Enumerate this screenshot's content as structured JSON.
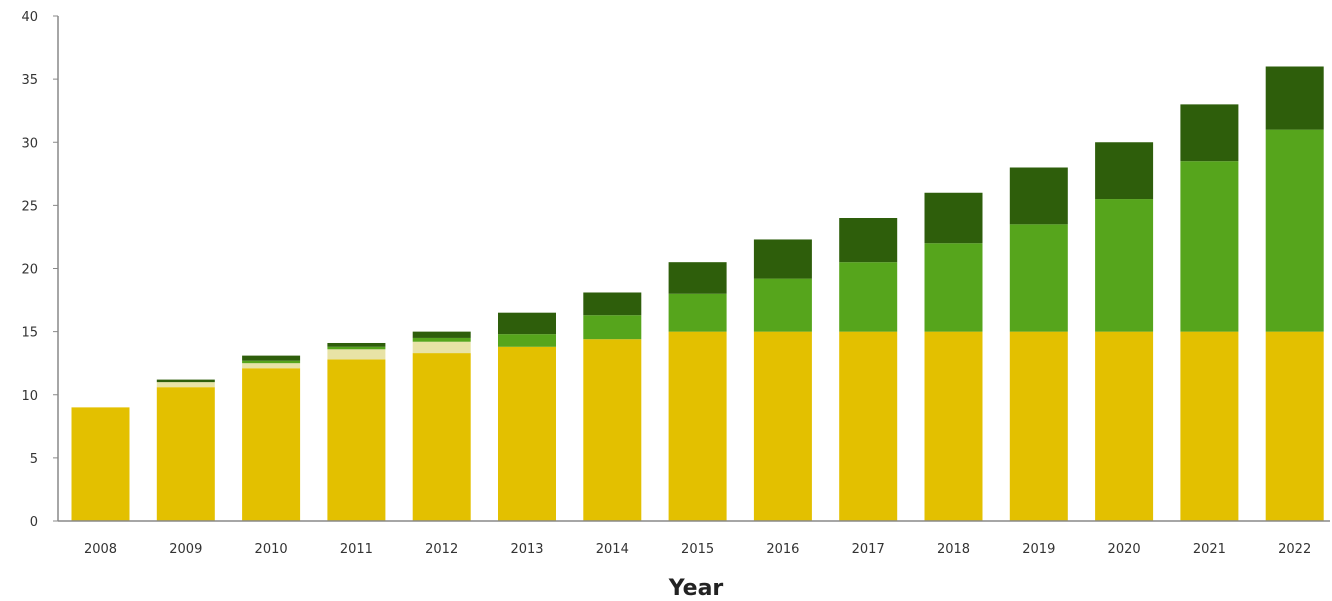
{
  "chart_data": {
    "type": "bar",
    "stacked": true,
    "title": "",
    "xlabel": "Year",
    "ylabel": "",
    "ylim": [
      0,
      40
    ],
    "yticks": [
      0,
      5,
      10,
      15,
      20,
      25,
      30,
      35,
      40
    ],
    "grid": false,
    "categories": [
      "2008",
      "2009",
      "2010",
      "2011",
      "2012",
      "2013",
      "2014",
      "2015",
      "2016",
      "2017",
      "2018",
      "2019",
      "2020",
      "2021",
      "2022"
    ],
    "series": [
      {
        "color": "#e3c000",
        "values": [
          9.0,
          10.6,
          12.1,
          12.8,
          13.3,
          13.8,
          14.4,
          15.0,
          15.0,
          15.0,
          15.0,
          15.0,
          15.0,
          15.0,
          15.0
        ]
      },
      {
        "color": "#e8e3a6",
        "values": [
          0.0,
          0.4,
          0.4,
          0.8,
          0.9,
          0.0,
          0.0,
          0.0,
          0.0,
          0.0,
          0.0,
          0.0,
          0.0,
          0.0,
          0.0
        ]
      },
      {
        "color": "#56a51c",
        "values": [
          0.0,
          0.0,
          0.2,
          0.2,
          0.3,
          1.0,
          1.9,
          3.0,
          4.2,
          5.5,
          7.0,
          8.5,
          10.5,
          13.5,
          16.0
        ]
      },
      {
        "color": "#2e5e0b",
        "values": [
          0.0,
          0.2,
          0.4,
          0.3,
          0.5,
          1.7,
          1.8,
          2.5,
          3.1,
          3.5,
          4.0,
          4.5,
          4.5,
          4.5,
          5.0
        ]
      }
    ]
  }
}
